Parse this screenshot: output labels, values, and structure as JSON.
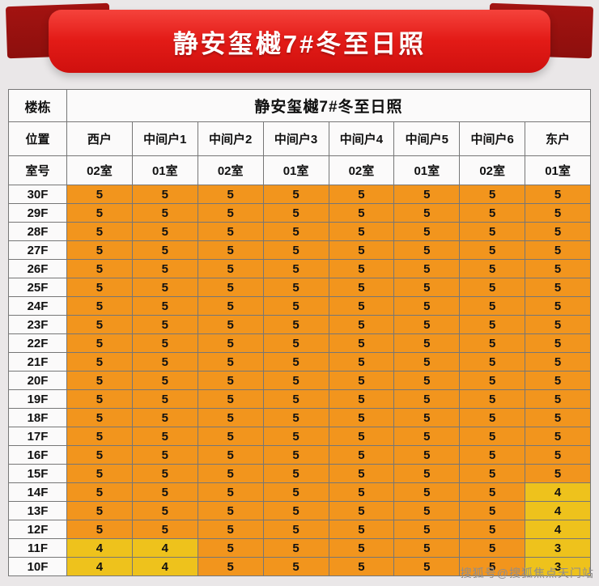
{
  "banner": {
    "title": "静安玺樾7#冬至日照"
  },
  "colors": {
    "banner_red": "#e31b17",
    "ribbon_dark": "#a31311"
  },
  "chart_data": {
    "type": "table",
    "title": "静安玺樾7#冬至日照",
    "row_headers": {
      "building": "楼栋",
      "position": "位置",
      "room": "室号"
    },
    "positions": [
      "西户",
      "中间户1",
      "中间户2",
      "中间户3",
      "中间户4",
      "中间户5",
      "中间户6",
      "东户"
    ],
    "rooms": [
      "02室",
      "01室",
      "02室",
      "01室",
      "02室",
      "01室",
      "02室",
      "01室"
    ],
    "rows": [
      {
        "floor": "30F",
        "values": [
          5,
          5,
          5,
          5,
          5,
          5,
          5,
          5
        ]
      },
      {
        "floor": "29F",
        "values": [
          5,
          5,
          5,
          5,
          5,
          5,
          5,
          5
        ]
      },
      {
        "floor": "28F",
        "values": [
          5,
          5,
          5,
          5,
          5,
          5,
          5,
          5
        ]
      },
      {
        "floor": "27F",
        "values": [
          5,
          5,
          5,
          5,
          5,
          5,
          5,
          5
        ]
      },
      {
        "floor": "26F",
        "values": [
          5,
          5,
          5,
          5,
          5,
          5,
          5,
          5
        ]
      },
      {
        "floor": "25F",
        "values": [
          5,
          5,
          5,
          5,
          5,
          5,
          5,
          5
        ]
      },
      {
        "floor": "24F",
        "values": [
          5,
          5,
          5,
          5,
          5,
          5,
          5,
          5
        ]
      },
      {
        "floor": "23F",
        "values": [
          5,
          5,
          5,
          5,
          5,
          5,
          5,
          5
        ]
      },
      {
        "floor": "22F",
        "values": [
          5,
          5,
          5,
          5,
          5,
          5,
          5,
          5
        ]
      },
      {
        "floor": "21F",
        "values": [
          5,
          5,
          5,
          5,
          5,
          5,
          5,
          5
        ]
      },
      {
        "floor": "20F",
        "values": [
          5,
          5,
          5,
          5,
          5,
          5,
          5,
          5
        ]
      },
      {
        "floor": "19F",
        "values": [
          5,
          5,
          5,
          5,
          5,
          5,
          5,
          5
        ]
      },
      {
        "floor": "18F",
        "values": [
          5,
          5,
          5,
          5,
          5,
          5,
          5,
          5
        ]
      },
      {
        "floor": "17F",
        "values": [
          5,
          5,
          5,
          5,
          5,
          5,
          5,
          5
        ]
      },
      {
        "floor": "16F",
        "values": [
          5,
          5,
          5,
          5,
          5,
          5,
          5,
          5
        ]
      },
      {
        "floor": "15F",
        "values": [
          5,
          5,
          5,
          5,
          5,
          5,
          5,
          5
        ]
      },
      {
        "floor": "14F",
        "values": [
          5,
          5,
          5,
          5,
          5,
          5,
          5,
          4
        ]
      },
      {
        "floor": "13F",
        "values": [
          5,
          5,
          5,
          5,
          5,
          5,
          5,
          4
        ]
      },
      {
        "floor": "12F",
        "values": [
          5,
          5,
          5,
          5,
          5,
          5,
          5,
          4
        ]
      },
      {
        "floor": "11F",
        "values": [
          4,
          4,
          5,
          5,
          5,
          5,
          5,
          3
        ]
      },
      {
        "floor": "10F",
        "values": [
          4,
          4,
          5,
          5,
          5,
          5,
          5,
          3
        ]
      }
    ],
    "cell_colors": {
      "full": "#f2951d",
      "reduced": "#eec21c"
    },
    "legend_hint": "5 = full sunlight (orange), below 5 = reduced (yellow)"
  },
  "watermark": "搜狐号@搜狐焦点天门站"
}
